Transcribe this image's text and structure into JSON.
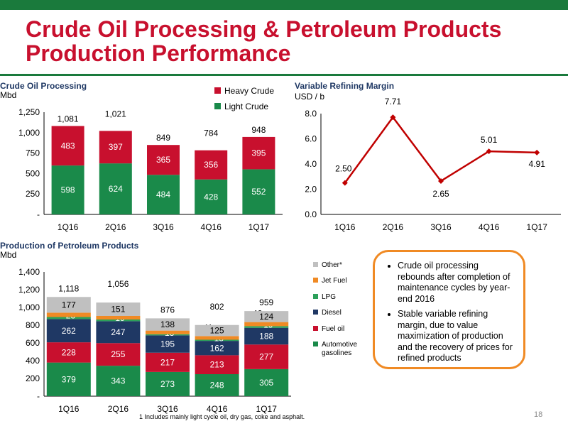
{
  "header": {
    "title_line1": "Crude Oil Processing & Petroleum Products",
    "title_line2": "Production Performance"
  },
  "colors": {
    "brand_green": "#1a7a3c",
    "brand_red": "#c8102e",
    "heavy_crude": "#c8102e",
    "light_crude": "#1a8a4a",
    "margin_line": "#c00000",
    "automotive_gasolines": "#1a8a4a",
    "fuel_oil": "#c8102e",
    "diesel": "#1f3864",
    "lpg": "#2ca05a",
    "jet_fuel": "#f08a24",
    "other": "#c0c0c0",
    "box_border": "#f08a24"
  },
  "chart_data": [
    {
      "type": "bar",
      "stacked": true,
      "title": "Crude Oil Processing",
      "ylabel": "Mbd",
      "categories": [
        "1Q16",
        "2Q16",
        "3Q16",
        "4Q16",
        "1Q17"
      ],
      "yticks": [
        "-",
        "250",
        "500",
        "750",
        "1,000",
        "1,250"
      ],
      "ylim": [
        0,
        1250
      ],
      "series": [
        {
          "name": "Light Crude",
          "values": [
            598,
            624,
            484,
            428,
            552
          ],
          "labels": [
            "598",
            "624",
            "484",
            "428",
            "552"
          ]
        },
        {
          "name": "Heavy Crude",
          "values": [
            483,
            397,
            365,
            356,
            395
          ],
          "labels": [
            "483",
            "397",
            "365",
            "356",
            "395"
          ]
        }
      ],
      "totals": [
        "1,081",
        "1,021",
        "849",
        "784",
        "948"
      ],
      "legend": [
        "Heavy Crude",
        "Light Crude"
      ],
      "legend_position": "top-right"
    },
    {
      "type": "line",
      "title": "Variable Refining Margin",
      "ylabel": "USD / b",
      "categories": [
        "1Q16",
        "2Q16",
        "3Q16",
        "4Q16",
        "1Q17"
      ],
      "values": [
        2.5,
        7.71,
        2.65,
        5.01,
        4.91
      ],
      "labels": [
        "2.50",
        "7.71",
        "2.65",
        "5.01",
        "4.91"
      ],
      "yticks": [
        "0.0",
        "2.0",
        "4.0",
        "6.0",
        "8.0"
      ],
      "ylim": [
        0,
        8
      ]
    },
    {
      "type": "bar",
      "stacked": true,
      "title": "Production of Petroleum Products",
      "ylabel": "Mbd",
      "categories": [
        "1Q16",
        "2Q16",
        "3Q16",
        "4Q16",
        "1Q17"
      ],
      "yticks": [
        "-",
        "200",
        "400",
        "600",
        "800",
        "1,000",
        "1,200",
        "1,400"
      ],
      "ylim": [
        0,
        1400
      ],
      "series": [
        {
          "name": "Automotive gasolines",
          "values": [
            379,
            343,
            273,
            248,
            305
          ],
          "labels": [
            "379",
            "343",
            "273",
            "248",
            "305"
          ]
        },
        {
          "name": "Fuel oil",
          "values": [
            228,
            255,
            217,
            213,
            277
          ],
          "labels": [
            "228",
            "255",
            "217",
            "213",
            "277"
          ]
        },
        {
          "name": "Diesel",
          "values": [
            262,
            247,
            195,
            162,
            188
          ],
          "labels": [
            "262",
            "247",
            "195",
            "162",
            "188"
          ]
        },
        {
          "name": "LPG",
          "values": [
            23,
            19,
            13,
            13,
            19
          ],
          "labels": [
            "23",
            "19",
            "13",
            "13",
            "19"
          ]
        },
        {
          "name": "Jet Fuel",
          "values": [
            49,
            40,
            41,
            41,
            46
          ],
          "labels": [
            "49",
            "40",
            "41",
            "41",
            "46"
          ]
        },
        {
          "name": "Other*",
          "values": [
            177,
            151,
            138,
            125,
            124
          ],
          "labels": [
            "177",
            "151",
            "138",
            "125",
            "124"
          ]
        }
      ],
      "totals": [
        "1,118",
        "1,056",
        "876",
        "802",
        "959"
      ],
      "legend": [
        "Other*",
        "Jet Fuel",
        "LPG",
        "Diesel",
        "Fuel oil",
        "Automotive gasolines"
      ],
      "legend_position": "right"
    }
  ],
  "notes": {
    "bullets": [
      "Crude oil processing rebounds after completion of maintenance cycles by year-end 2016",
      "Stable variable refining margin, due to value maximization of production and the recovery of prices for refined products"
    ]
  },
  "footnote": "1 Includes mainly light cycle oil, dry gas, coke and asphalt.",
  "page_number": "18"
}
